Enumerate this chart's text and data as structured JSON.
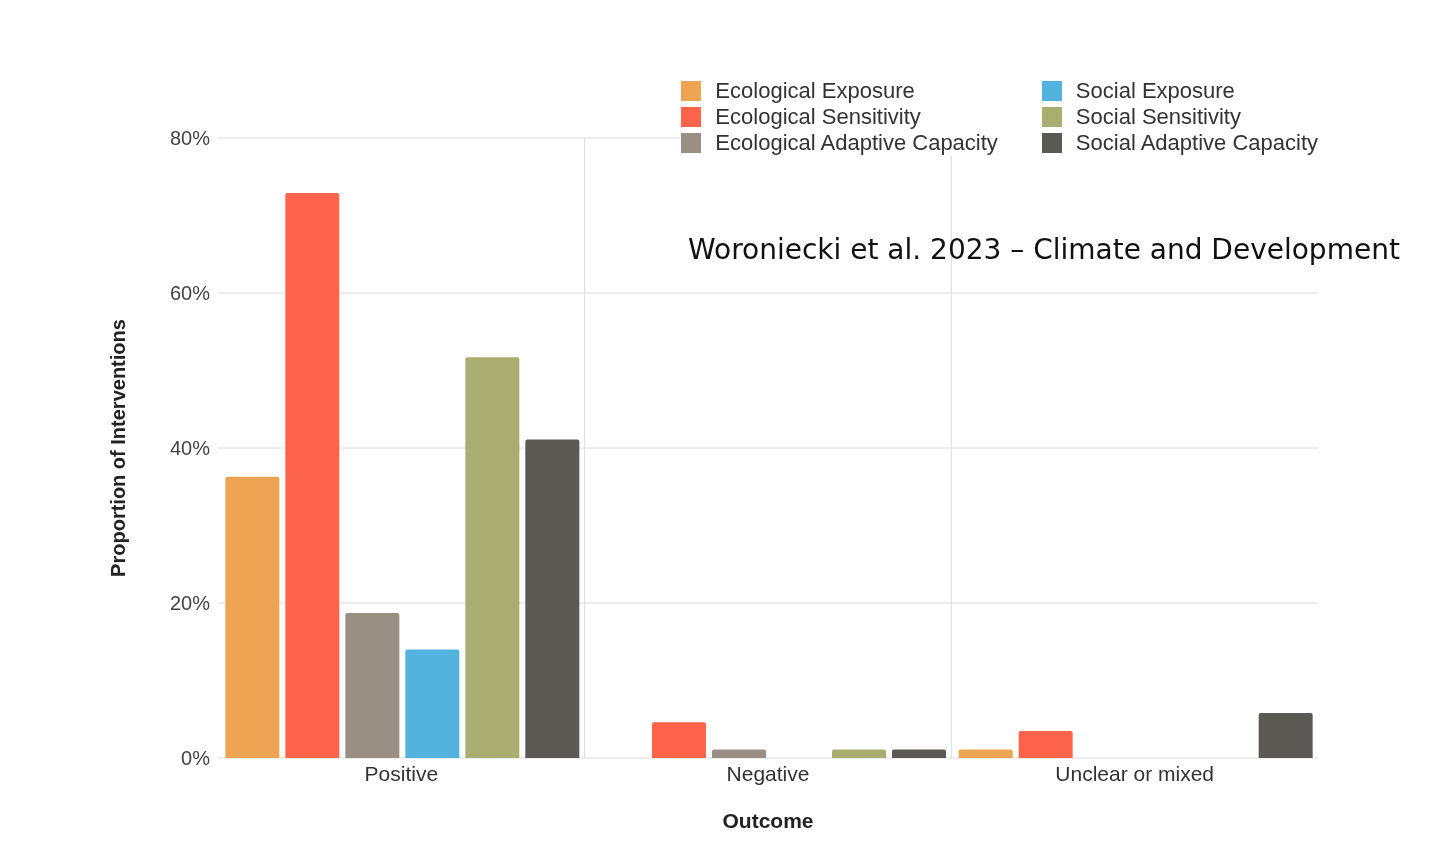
{
  "chart_data": {
    "type": "bar",
    "xlabel": "Outcome",
    "ylabel": "Proportion of Interventions",
    "categories": [
      "Positive",
      "Negative",
      "Unclear or mixed"
    ],
    "series": [
      {
        "name": "Ecological Exposure",
        "color": "#eda452",
        "values": [
          36.3,
          null,
          1.1
        ]
      },
      {
        "name": "Ecological Sensitivity",
        "color": "#fe634b",
        "values": [
          72.9,
          4.6,
          3.5
        ]
      },
      {
        "name": "Ecological Adaptive Capacity",
        "color": "#9a8f84",
        "values": [
          18.7,
          1.1,
          null
        ]
      },
      {
        "name": "Social Exposure",
        "color": "#52b3de",
        "values": [
          14.0,
          null,
          null
        ]
      },
      {
        "name": "Social Sensitivity",
        "color": "#a9ae70",
        "values": [
          51.7,
          1.1,
          null
        ]
      },
      {
        "name": "Social Adaptive Capacity",
        "color": "#5b5954",
        "values": [
          41.1,
          1.1,
          5.8
        ]
      }
    ],
    "ylim": [
      0,
      80
    ],
    "yticks": [
      {
        "value": 0,
        "label": "0%"
      },
      {
        "value": 20,
        "label": "20%"
      },
      {
        "value": 40,
        "label": "40%"
      },
      {
        "value": 60,
        "label": "60%"
      },
      {
        "value": 80,
        "label": "80%"
      }
    ],
    "grid": true,
    "legend": "top right",
    "annotations": [
      "Woroniecki et al. 2023 – Climate and Development"
    ]
  }
}
